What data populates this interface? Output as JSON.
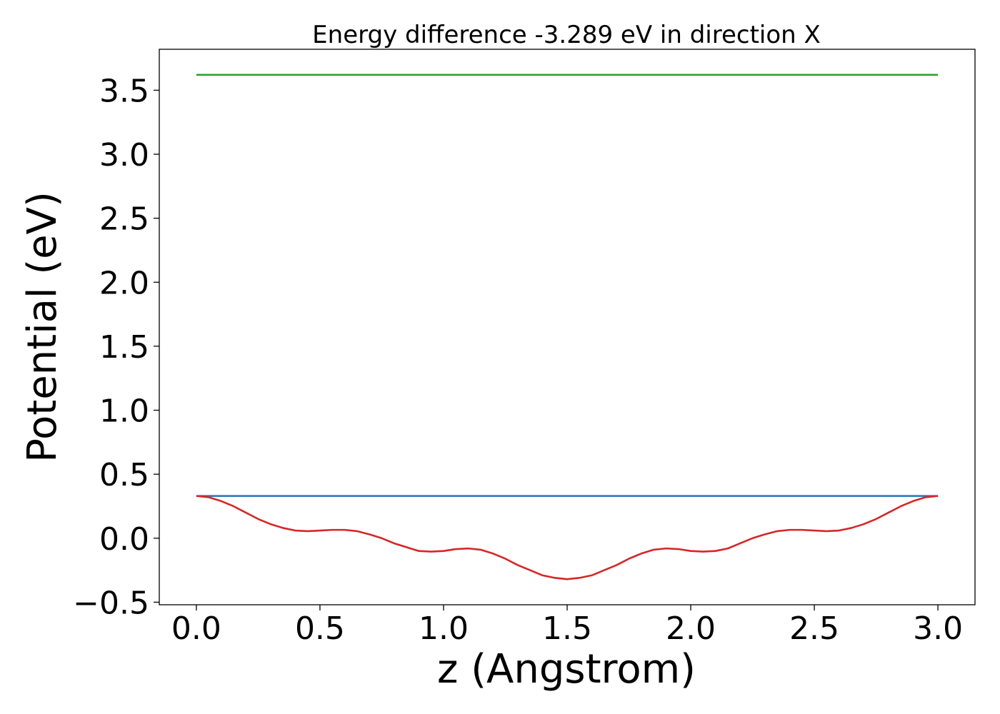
{
  "chart_data": {
    "type": "line",
    "title": "Energy difference -3.289 eV in direction X",
    "xlabel": "z (Angstrom)",
    "ylabel": "Potential (eV)",
    "xlim": [
      -0.15,
      3.15
    ],
    "ylim": [
      -0.52,
      3.82
    ],
    "xticks": [
      0.0,
      0.5,
      1.0,
      1.5,
      2.0,
      2.5,
      3.0
    ],
    "xtick_labels": [
      "0.0",
      "0.5",
      "1.0",
      "1.5",
      "2.0",
      "2.5",
      "3.0"
    ],
    "yticks": [
      -0.5,
      0.0,
      0.5,
      1.0,
      1.5,
      2.0,
      2.5,
      3.0,
      3.5
    ],
    "ytick_labels": [
      "−0.5",
      "0.0",
      "0.5",
      "1.0",
      "1.5",
      "2.0",
      "2.5",
      "3.0",
      "3.5"
    ],
    "grid": false,
    "series": [
      {
        "color": "#2ca02c",
        "x": [
          0.0,
          3.0
        ],
        "y": [
          3.62,
          3.62
        ]
      },
      {
        "color": "#1f77b4",
        "x": [
          0.0,
          3.0
        ],
        "y": [
          0.33,
          0.33
        ]
      },
      {
        "color": "#d62728",
        "x": [
          0.0,
          0.05,
          0.1,
          0.15,
          0.2,
          0.25,
          0.3,
          0.35,
          0.4,
          0.45,
          0.5,
          0.55,
          0.6,
          0.65,
          0.7,
          0.75,
          0.8,
          0.85,
          0.9,
          0.95,
          1.0,
          1.05,
          1.1,
          1.15,
          1.2,
          1.25,
          1.3,
          1.35,
          1.4,
          1.45,
          1.5,
          1.55,
          1.6,
          1.65,
          1.7,
          1.75,
          1.8,
          1.85,
          1.9,
          1.95,
          2.0,
          2.05,
          2.1,
          2.15,
          2.2,
          2.25,
          2.3,
          2.35,
          2.4,
          2.45,
          2.5,
          2.55,
          2.6,
          2.65,
          2.7,
          2.75,
          2.8,
          2.85,
          2.9,
          2.95,
          3.0
        ],
        "y": [
          0.33,
          0.32,
          0.29,
          0.25,
          0.2,
          0.15,
          0.11,
          0.08,
          0.06,
          0.055,
          0.06,
          0.065,
          0.065,
          0.055,
          0.03,
          0.0,
          -0.04,
          -0.07,
          -0.1,
          -0.105,
          -0.1,
          -0.085,
          -0.08,
          -0.09,
          -0.12,
          -0.16,
          -0.21,
          -0.25,
          -0.29,
          -0.31,
          -0.32,
          -0.31,
          -0.29,
          -0.25,
          -0.21,
          -0.16,
          -0.12,
          -0.09,
          -0.08,
          -0.085,
          -0.1,
          -0.105,
          -0.1,
          -0.08,
          -0.04,
          0.0,
          0.03,
          0.055,
          0.065,
          0.065,
          0.06,
          0.055,
          0.06,
          0.08,
          0.11,
          0.15,
          0.2,
          0.25,
          0.29,
          0.32,
          0.33
        ]
      }
    ]
  }
}
